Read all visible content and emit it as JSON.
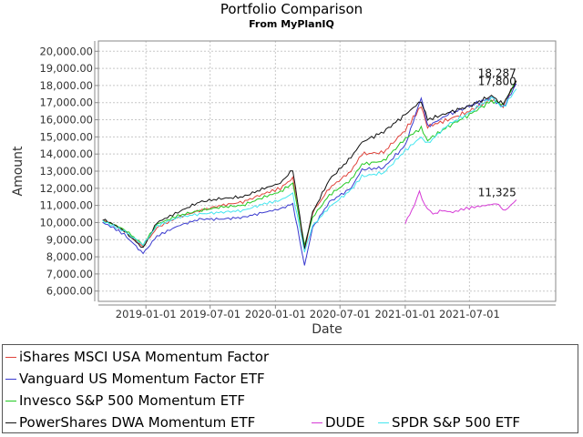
{
  "chart_data": {
    "type": "line",
    "title": "Portfolio Comparison",
    "subtitle": "From MyPlanIQ",
    "xlabel": "Date",
    "ylabel": "Amount",
    "ylim": [
      5400,
      20600
    ],
    "xlim": [
      "2018-08-20",
      "2022-03-01"
    ],
    "yticks": [
      "6,000.00",
      "7,000.00",
      "8,000.00",
      "9,000.00",
      "10,000.00",
      "11,000.00",
      "12,000.00",
      "13,000.00",
      "14,000.00",
      "15,000.00",
      "16,000.00",
      "17,000.00",
      "18,000.00",
      "19,000.00",
      "20,000.00"
    ],
    "ytick_values": [
      6000,
      7000,
      8000,
      9000,
      10000,
      11000,
      12000,
      13000,
      14000,
      15000,
      16000,
      17000,
      18000,
      19000,
      20000
    ],
    "xticks": [
      "2019-01-01",
      "2019-07-01",
      "2020-01-01",
      "2020-07-01",
      "2021-01-01",
      "2021-07-01"
    ],
    "grid": true,
    "legend_position": "bottom",
    "end_labels": [
      "18,287",
      "17,800",
      "11,325"
    ],
    "series": [
      {
        "name": "iShares MSCI USA Momentum Factor",
        "color": "#e0443c",
        "x": [
          "2018-09-01",
          "2018-10-01",
          "2018-11-01",
          "2018-12-24",
          "2019-02-01",
          "2019-04-01",
          "2019-06-01",
          "2019-08-01",
          "2019-10-01",
          "2019-12-01",
          "2020-01-15",
          "2020-02-19",
          "2020-03-23",
          "2020-04-15",
          "2020-06-01",
          "2020-08-01",
          "2020-09-01",
          "2020-11-01",
          "2021-01-01",
          "2021-02-15",
          "2021-03-05",
          "2021-05-01",
          "2021-07-01",
          "2021-09-01",
          "2021-10-04",
          "2021-11-10"
        ],
        "y": [
          10150,
          9900,
          9500,
          8600,
          9700,
          10300,
          10700,
          11000,
          11200,
          11700,
          12000,
          12600,
          8400,
          10600,
          12000,
          13000,
          14000,
          14100,
          15400,
          16800,
          15600,
          16000,
          16500,
          17200,
          16800,
          18287
        ]
      },
      {
        "name": "Vanguard US Momentum Factor ETF",
        "color": "#3a3acf",
        "x": [
          "2018-09-01",
          "2018-10-01",
          "2018-11-01",
          "2018-12-24",
          "2019-02-01",
          "2019-04-01",
          "2019-06-01",
          "2019-08-01",
          "2019-10-01",
          "2019-12-01",
          "2020-01-15",
          "2020-02-19",
          "2020-03-23",
          "2020-04-15",
          "2020-06-01",
          "2020-08-01",
          "2020-09-01",
          "2020-11-01",
          "2021-01-01",
          "2021-02-15",
          "2021-03-05",
          "2021-05-01",
          "2021-07-01",
          "2021-09-01",
          "2021-10-04",
          "2021-11-10"
        ],
        "y": [
          10000,
          9700,
          9300,
          8200,
          9200,
          9800,
          10200,
          10200,
          10300,
          10600,
          10800,
          11100,
          7500,
          9700,
          11200,
          12000,
          13100,
          13200,
          14500,
          17300,
          15600,
          16300,
          16800,
          17300,
          16700,
          18100
        ]
      },
      {
        "name": "Invesco S&P 500 Momentum ETF",
        "color": "#22c922",
        "x": [
          "2018-09-01",
          "2018-10-01",
          "2018-11-01",
          "2018-12-24",
          "2019-02-01",
          "2019-04-01",
          "2019-06-01",
          "2019-08-01",
          "2019-10-01",
          "2019-12-01",
          "2020-01-15",
          "2020-02-19",
          "2020-03-23",
          "2020-04-15",
          "2020-06-01",
          "2020-08-01",
          "2020-09-01",
          "2020-11-01",
          "2021-01-01",
          "2021-02-15",
          "2021-03-05",
          "2021-05-01",
          "2021-07-01",
          "2021-09-01",
          "2021-10-04",
          "2021-11-10"
        ],
        "y": [
          10100,
          9900,
          9600,
          8700,
          9900,
          10400,
          10700,
          10900,
          11000,
          11500,
          11800,
          12300,
          8700,
          10300,
          11600,
          12500,
          13400,
          13600,
          14900,
          15500,
          14800,
          15600,
          16300,
          17100,
          16900,
          18250
        ]
      },
      {
        "name": "PowerShares DWA Momentum ETF",
        "color": "#111111",
        "x": [
          "2018-09-01",
          "2018-10-01",
          "2018-11-01",
          "2018-12-24",
          "2019-02-01",
          "2019-04-01",
          "2019-06-01",
          "2019-08-01",
          "2019-10-01",
          "2019-12-01",
          "2020-01-15",
          "2020-02-19",
          "2020-03-23",
          "2020-04-15",
          "2020-06-01",
          "2020-08-01",
          "2020-09-01",
          "2020-11-01",
          "2021-01-01",
          "2021-02-15",
          "2021-03-05",
          "2021-05-01",
          "2021-07-01",
          "2021-09-01",
          "2021-10-04",
          "2021-11-10"
        ],
        "y": [
          10200,
          9900,
          9500,
          8500,
          10000,
          10600,
          11200,
          11400,
          11500,
          12000,
          12300,
          13100,
          8500,
          10600,
          12500,
          13800,
          14700,
          15300,
          16300,
          17100,
          16000,
          16400,
          16800,
          17400,
          16900,
          18280
        ]
      },
      {
        "name": "DUDE",
        "color": "#d63ad6",
        "x": [
          "2021-01-01",
          "2021-01-20",
          "2021-02-10",
          "2021-02-25",
          "2021-03-20",
          "2021-04-15",
          "2021-05-15",
          "2021-06-15",
          "2021-07-15",
          "2021-08-15",
          "2021-09-15",
          "2021-10-10",
          "2021-10-25",
          "2021-11-10"
        ],
        "y": [
          10000,
          10700,
          11800,
          11000,
          10500,
          10700,
          10600,
          10800,
          10900,
          11000,
          11100,
          10700,
          11000,
          11325
        ]
      },
      {
        "name": "SPDR S&P 500 ETF",
        "color": "#44e6f0",
        "x": [
          "2018-09-01",
          "2018-10-01",
          "2018-11-01",
          "2018-12-24",
          "2019-02-01",
          "2019-04-01",
          "2019-06-01",
          "2019-08-01",
          "2019-10-01",
          "2019-12-01",
          "2020-01-15",
          "2020-02-19",
          "2020-03-23",
          "2020-04-15",
          "2020-06-01",
          "2020-08-01",
          "2020-09-01",
          "2020-11-01",
          "2021-01-01",
          "2021-02-15",
          "2021-03-05",
          "2021-05-01",
          "2021-07-01",
          "2021-09-01",
          "2021-10-04",
          "2021-11-10"
        ],
        "y": [
          10100,
          9800,
          9500,
          8700,
          9800,
          10300,
          10500,
          10600,
          10700,
          11100,
          11300,
          11700,
          8300,
          9800,
          10900,
          11900,
          12700,
          12900,
          14200,
          15000,
          14600,
          15700,
          16400,
          17300,
          16700,
          17800
        ]
      }
    ]
  }
}
